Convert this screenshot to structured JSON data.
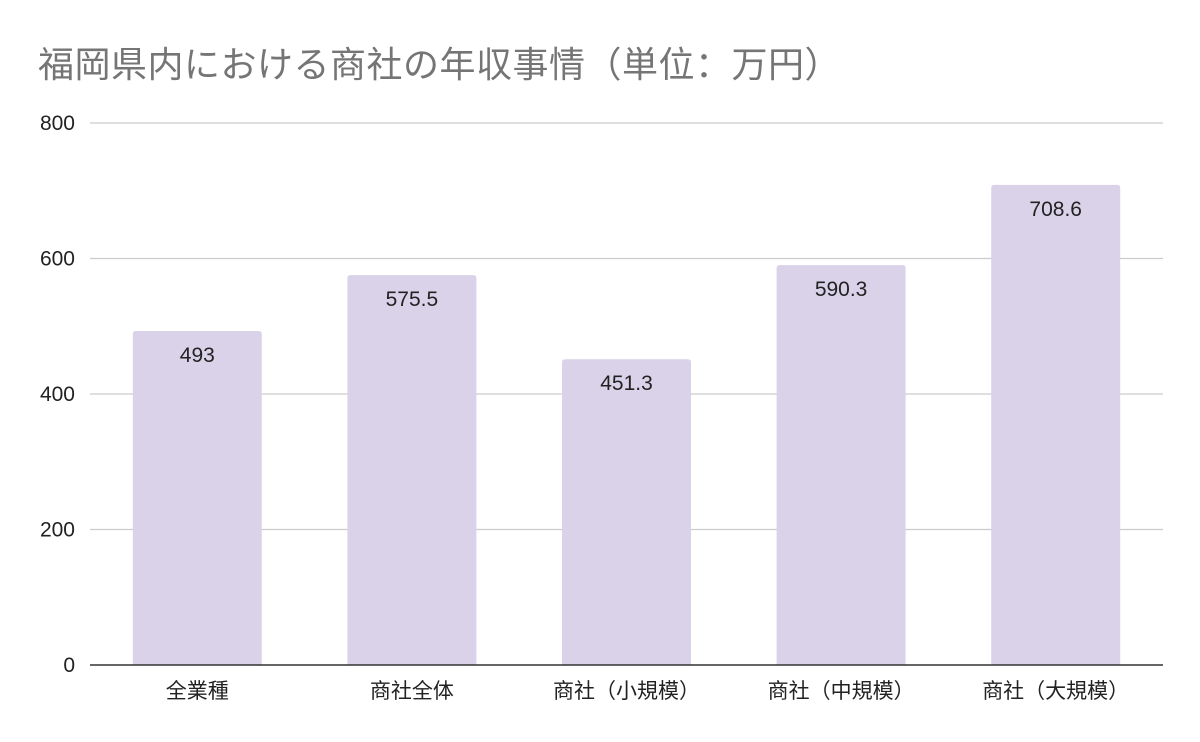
{
  "chart_data": {
    "type": "bar",
    "title": "福岡県内における商社の年収事情（単位：万円）",
    "categories": [
      "全業種",
      "商社全体",
      "商社（小規模）",
      "商社（中規模）",
      "商社（大規模）"
    ],
    "values": [
      493,
      575.5,
      451.3,
      590.3,
      708.6
    ],
    "data_labels": [
      "493",
      "575.5",
      "451.3",
      "590.3",
      "708.6"
    ],
    "y_ticks": [
      0,
      200,
      400,
      600,
      800
    ],
    "ylim": [
      0,
      800
    ],
    "xlabel": "",
    "ylabel": "",
    "grid": true,
    "legend": "none",
    "bar_color": "#d9d2e9",
    "grid_color": "#cccccc",
    "axis_color": "#333333",
    "title_color": "#757575"
  }
}
